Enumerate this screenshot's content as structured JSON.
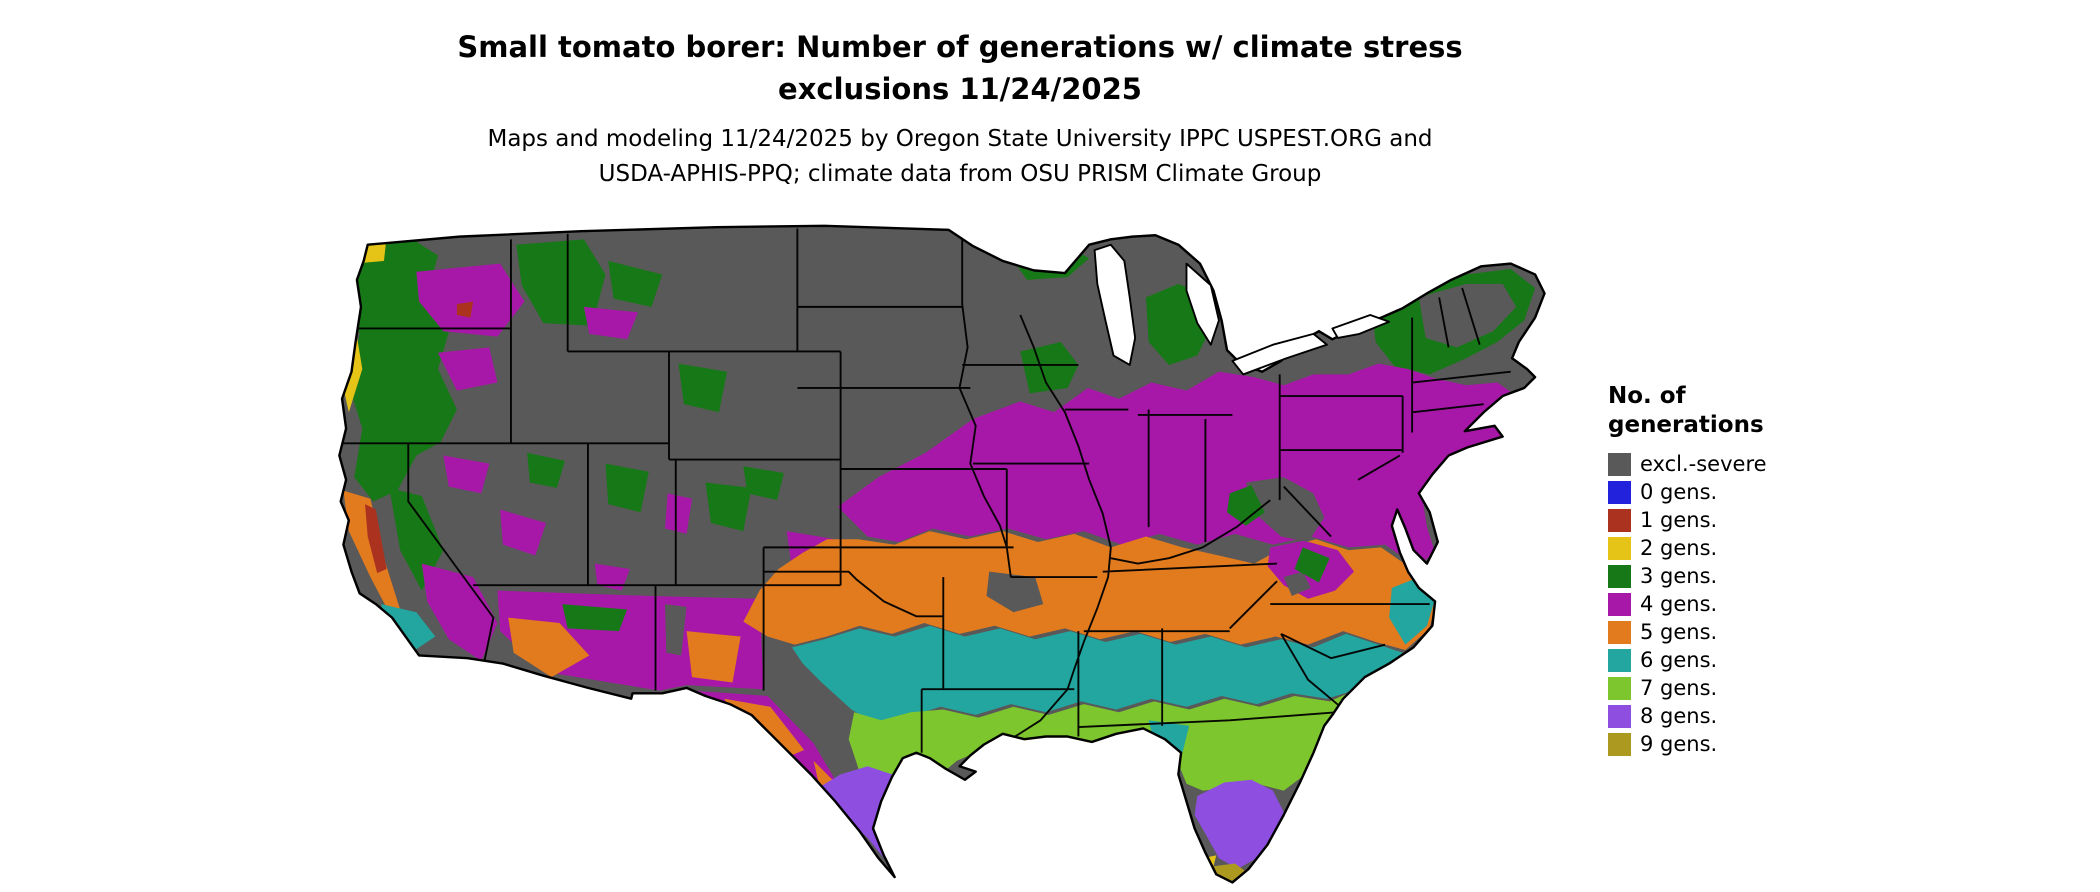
{
  "title": "Small tomato borer: Number of generations w/ climate stress exclusions 11/24/2025",
  "subtitle": "Maps and modeling 11/24/2025 by Oregon State University IPPC USPEST.ORG and USDA-APHIS-PPQ; climate data from OSU PRISM Climate Group",
  "map": {
    "region": "Continental United States",
    "date_shown": "11/24/2025"
  },
  "legend": {
    "title": "No. of generations",
    "items": [
      {
        "key": "excl",
        "label": "excl.-severe",
        "color": "#595959"
      },
      {
        "key": "g0",
        "label": "0 gens.",
        "color": "#2222DD"
      },
      {
        "key": "g1",
        "label": "1 gens.",
        "color": "#AC3220"
      },
      {
        "key": "g2",
        "label": "2 gens.",
        "color": "#E5C417"
      },
      {
        "key": "g3",
        "label": "3 gens.",
        "color": "#177817"
      },
      {
        "key": "g4",
        "label": "4 gens.",
        "color": "#A818A8"
      },
      {
        "key": "g5",
        "label": "5 gens.",
        "color": "#E27A1E"
      },
      {
        "key": "g6",
        "label": "6 gens.",
        "color": "#23A69F"
      },
      {
        "key": "g7",
        "label": "7 gens.",
        "color": "#7DC62E"
      },
      {
        "key": "g8",
        "label": "8 gens.",
        "color": "#8E4FE0"
      },
      {
        "key": "g9",
        "label": "9 gens.",
        "color": "#AB9920"
      }
    ]
  }
}
